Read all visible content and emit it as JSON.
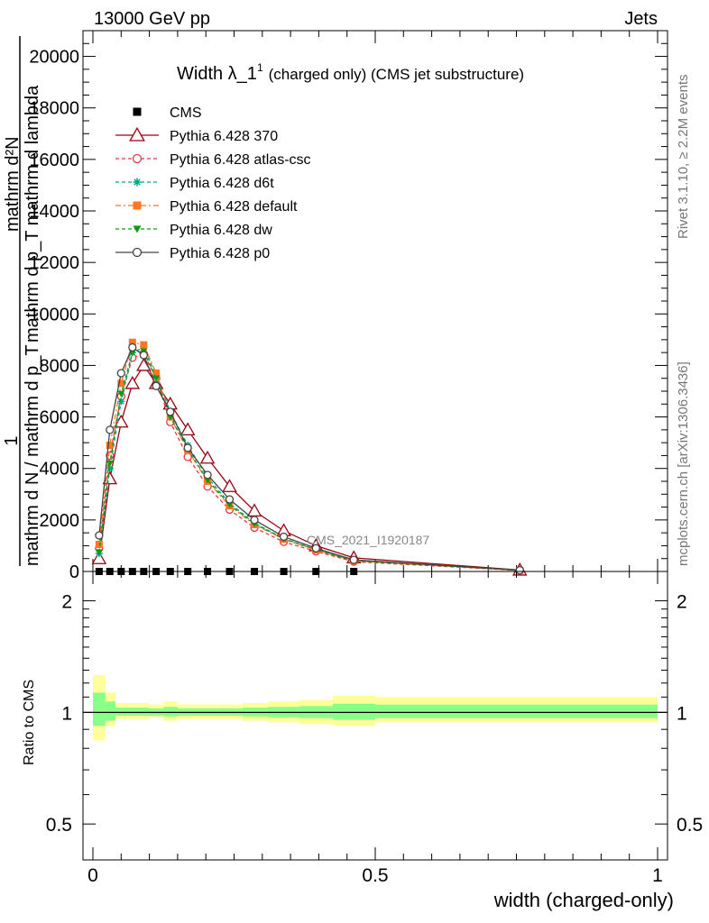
{
  "header": {
    "energy_label": "13000 GeV pp",
    "process_label": "Jets"
  },
  "side_labels": {
    "rivet": "Rivet 3.1.10, ≥ 2.2M events",
    "mcplots": "mcplots.cern.ch [arXiv:1306.3436]"
  },
  "chart_data": [
    {
      "type": "line",
      "title": "Width λ_1",
      "title_superscript": "1",
      "subtitle": "(charged only) (CMS jet substructure)",
      "analysis_tag": "CMS_2021_I1920187",
      "ylabel_fraction_numerator": "1",
      "ylabel_fraction_denominator": "mathrm d N / mathrm d p_T",
      "ylabel_mathexpr_numerator": "mathrm d²N",
      "ylabel_mathexpr_denominator": "mathrm d p_T mathrm d lambda",
      "ylim": [
        0,
        21000
      ],
      "y_ticks": [
        "0",
        "2000",
        "4000",
        "6000",
        "8000",
        "10000",
        "12000",
        "14000",
        "16000",
        "18000",
        "20000"
      ],
      "x_range": [
        0,
        1
      ],
      "legend_position": "top-left",
      "series": [
        {
          "name": "CMS",
          "color": "#000000",
          "marker": "filled-square",
          "x": [
            0.011,
            0.03,
            0.05,
            0.07,
            0.09,
            0.112,
            0.137,
            0.168,
            0.203,
            0.242,
            0.286,
            0.338,
            0.395,
            0.462,
            0.756
          ],
          "y": [
            0,
            0,
            0,
            0,
            0,
            0,
            0,
            0,
            0,
            0,
            0,
            0,
            0,
            0,
            0
          ]
        },
        {
          "name": "Pythia 6.428 370",
          "color": "#990011",
          "marker": "open-triangle",
          "dash": "solid",
          "x": [
            0.011,
            0.03,
            0.05,
            0.07,
            0.09,
            0.112,
            0.137,
            0.168,
            0.203,
            0.242,
            0.286,
            0.338,
            0.395,
            0.462,
            0.756
          ],
          "y": [
            500,
            3600,
            5800,
            7300,
            8000,
            7300,
            6500,
            5500,
            4400,
            3300,
            2350,
            1580,
            1000,
            530,
            55
          ]
        },
        {
          "name": "Pythia 6.428 atlas-csc",
          "color": "#ee3344",
          "marker": "open-circle",
          "dash": "4,3",
          "x": [
            0.011,
            0.03,
            0.05,
            0.07,
            0.09,
            0.112,
            0.137,
            0.168,
            0.203,
            0.242,
            0.286,
            0.338,
            0.395,
            0.462,
            0.756
          ],
          "y": [
            900,
            4500,
            6800,
            8300,
            8450,
            7500,
            5800,
            4450,
            3300,
            2400,
            1700,
            1150,
            780,
            380,
            40
          ]
        },
        {
          "name": "Pythia 6.428 d6t",
          "color": "#00aa88",
          "marker": "star",
          "dash": "4,3",
          "x": [
            0.011,
            0.03,
            0.05,
            0.07,
            0.09,
            0.112,
            0.137,
            0.168,
            0.203,
            0.242,
            0.286,
            0.338,
            0.395,
            0.462,
            0.756
          ],
          "y": [
            700,
            4000,
            6600,
            8500,
            8700,
            7600,
            6200,
            4900,
            3650,
            2650,
            1880,
            1280,
            850,
            420,
            45
          ]
        },
        {
          "name": "Pythia 6.428 default",
          "color": "#ff7722",
          "marker": "filled-square",
          "dash": "6,3,2,3",
          "x": [
            0.011,
            0.03,
            0.05,
            0.07,
            0.09,
            0.112,
            0.137,
            0.168,
            0.203,
            0.242,
            0.286,
            0.338,
            0.395,
            0.462,
            0.756
          ],
          "y": [
            1050,
            4900,
            7300,
            8900,
            8800,
            7700,
            6000,
            4700,
            3500,
            2550,
            1820,
            1250,
            830,
            410,
            45
          ]
        },
        {
          "name": "Pythia 6.428 dw",
          "color": "#119911",
          "marker": "filled-triangle-down",
          "dash": "4,3",
          "x": [
            0.011,
            0.03,
            0.05,
            0.07,
            0.09,
            0.112,
            0.137,
            0.168,
            0.203,
            0.242,
            0.286,
            0.338,
            0.395,
            0.462,
            0.756
          ],
          "y": [
            750,
            4200,
            6900,
            8500,
            8550,
            7500,
            6000,
            4750,
            3550,
            2600,
            1850,
            1270,
            840,
            415,
            45
          ]
        },
        {
          "name": "Pythia 6.428 p0",
          "color": "#444444",
          "marker": "open-circle",
          "dash": "solid",
          "x": [
            0.011,
            0.03,
            0.05,
            0.07,
            0.09,
            0.112,
            0.137,
            0.168,
            0.203,
            0.242,
            0.286,
            0.338,
            0.395,
            0.462,
            0.756
          ],
          "y": [
            1400,
            5500,
            7700,
            8700,
            8400,
            7200,
            6200,
            4800,
            3750,
            2800,
            2000,
            1350,
            900,
            450,
            50
          ]
        }
      ]
    },
    {
      "type": "area",
      "ylabel": "Ratio to CMS",
      "xlabel": "width (charged-only)",
      "ylim": [
        0.4,
        2.4
      ],
      "y_scale": "log",
      "y_ticks": [
        "0.5",
        "1",
        "2"
      ],
      "x_ticks": [
        "0",
        "0.5",
        "1"
      ],
      "xlim": [
        -0.02,
        1.0
      ],
      "reference_line": 1,
      "bands": {
        "bin_edges": [
          0.0,
          0.022,
          0.04,
          0.06,
          0.08,
          0.1,
          0.125,
          0.15,
          0.185,
          0.22,
          0.265,
          0.31,
          0.365,
          0.425,
          0.5,
          1.0
        ],
        "total_uncertainty": {
          "color": "#ffff99",
          "low": [
            0.84,
            0.92,
            0.96,
            0.96,
            0.96,
            0.97,
            0.95,
            0.96,
            0.96,
            0.96,
            0.95,
            0.94,
            0.93,
            0.92,
            0.94
          ],
          "high": [
            1.26,
            1.13,
            1.06,
            1.06,
            1.06,
            1.05,
            1.07,
            1.05,
            1.05,
            1.05,
            1.06,
            1.07,
            1.08,
            1.11,
            1.1
          ]
        },
        "stat_uncertainty": {
          "color": "#88ff88",
          "low": [
            0.92,
            0.95,
            0.98,
            0.98,
            0.98,
            0.98,
            0.975,
            0.98,
            0.98,
            0.98,
            0.975,
            0.97,
            0.965,
            0.955,
            0.965
          ],
          "high": [
            1.13,
            1.07,
            1.03,
            1.03,
            1.03,
            1.025,
            1.035,
            1.025,
            1.025,
            1.025,
            1.03,
            1.035,
            1.04,
            1.055,
            1.05
          ]
        }
      }
    }
  ]
}
